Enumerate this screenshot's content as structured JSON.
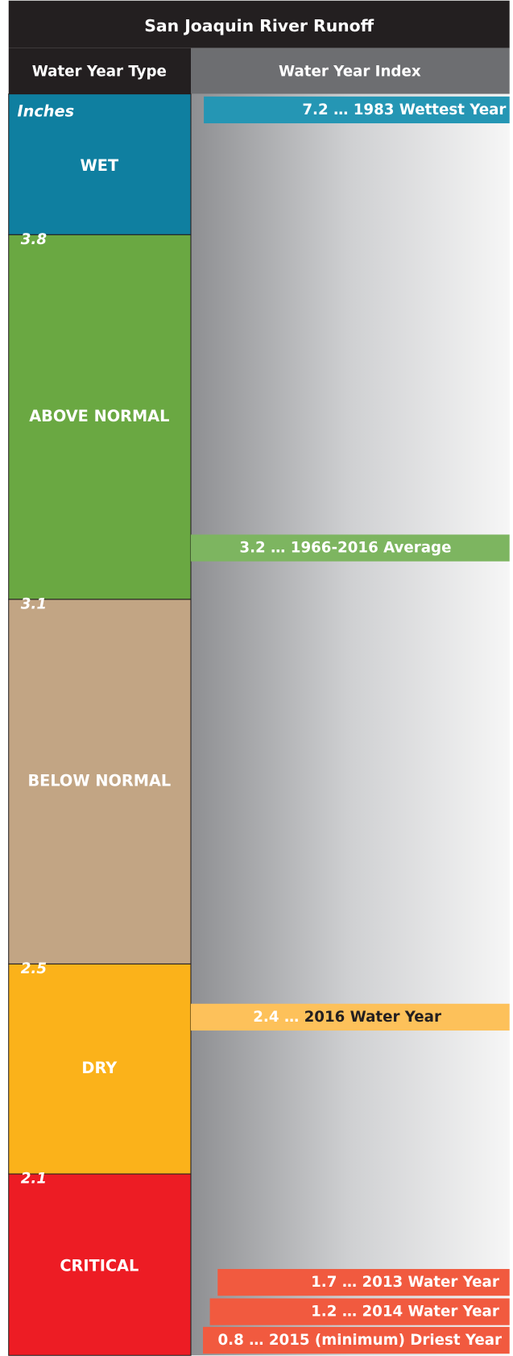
{
  "title": "San Joaquin River Runoff",
  "headers": {
    "type": "Water Year Type",
    "index": "Water Year Index"
  },
  "unit": "Inches",
  "separator": "…",
  "types": [
    {
      "name": "WET",
      "color": "#0f7fa0"
    },
    {
      "name": "ABOVE NORMAL",
      "color": "#6aa842"
    },
    {
      "name": "BELOW NORMAL",
      "color": "#c2a584"
    },
    {
      "name": "DRY",
      "color": "#fbb21a"
    },
    {
      "name": "CRITICAL",
      "color": "#ed1c24"
    }
  ],
  "thresholds": [
    3.8,
    3.1,
    2.5,
    2.1
  ],
  "markers": [
    {
      "value": 7.2,
      "label": "1983 Wettest Year",
      "color": "#2596b4"
    },
    {
      "value": 3.2,
      "label": "1966-2016 Average",
      "color": "#7db560"
    },
    {
      "value": 2.4,
      "label": "2016 Water Year",
      "color": "#fdc15a"
    },
    {
      "value": 1.7,
      "label": "2013 Water Year",
      "color": "#f15a3f"
    },
    {
      "value": 1.2,
      "label": "2014 Water Year",
      "color": "#f15a3f"
    },
    {
      "value": 0.8,
      "label": "2015 (minimum) Driest Year",
      "color": "#f15a3f"
    }
  ]
}
